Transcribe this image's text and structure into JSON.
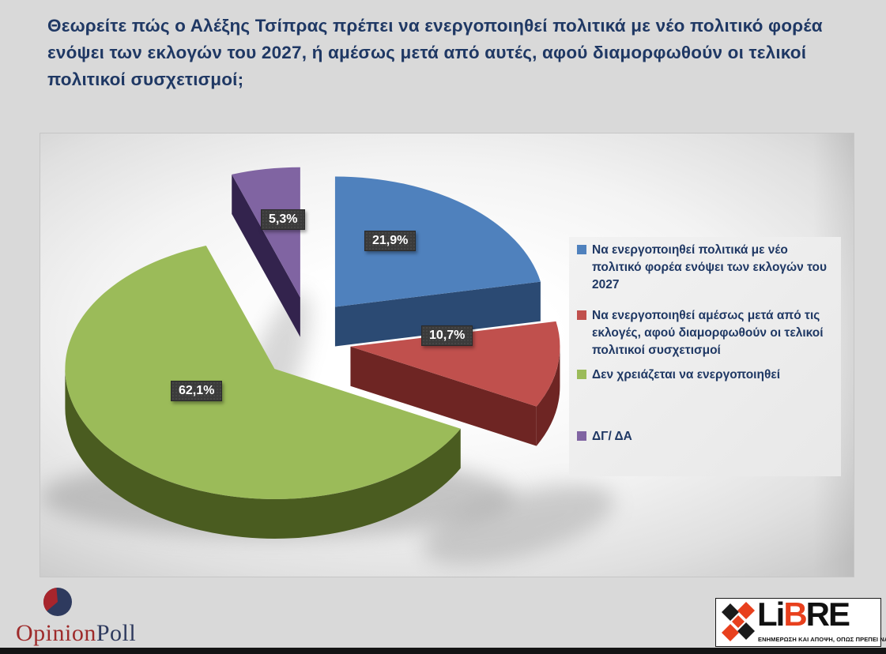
{
  "title": "Θεωρείτε πώς ο Αλέξης Τσίπρας πρέπει να ενεργοποιηθεί πολιτικά με νέο πολιτικό φορέα ενόψει των εκλογών του 2027, ή αμέσως μετά από αυτές, αφού διαμορφωθούν οι τελικοί πολιτικοί συσχετισμοί;",
  "chart_data": {
    "type": "pie",
    "style": "3d-exploded",
    "legend_position": "right",
    "value_format": "percent-comma-decimal",
    "slices": [
      {
        "label": "Να ενεργοποιηθεί πολιτικά με νέο πολιτικό φορέα ενόψει των εκλογών του 2027",
        "value": 21.9,
        "display": "21,9%",
        "color": "#4f81bd",
        "side_color": "#2b4a73"
      },
      {
        "label": "Να ενεργοποιηθεί αμέσως μετά από τις εκλογές, αφού διαμορφωθούν οι τελικοί πολιτικοί συσχετισμοί",
        "value": 10.7,
        "display": "10,7%",
        "color": "#c0504d",
        "side_color": "#6e2523"
      },
      {
        "label": "Δεν χρειάζεται να ενεργοποιηθεί",
        "value": 62.1,
        "display": "62,1%",
        "color": "#9bbb59",
        "side_color": "#4a5c20"
      },
      {
        "label": "ΔΓ/ ΔΑ",
        "value": 5.3,
        "display": "5,3%",
        "color": "#8064a2",
        "side_color": "#33234d"
      }
    ]
  },
  "footer": {
    "opinion_poll": {
      "part1": "Opinion",
      "part2": "Poll",
      "color1": "#9e2b2b",
      "color2": "#2e3a5e",
      "icon": "pie-logo-icon"
    },
    "libre": {
      "part1": "Li",
      "part2": "B",
      "part3": "RE",
      "accent_color": "#e8401d",
      "tagline": "ΕΝΗΜΕΡΩΣΗ ΚΑΙ ΑΠΟΨΗ, ΟΠΩΣ ΠΡΕΠΕΙ ΝΑ ΕΙΝΑΙ...",
      "icon": "diamonds-logo-icon"
    }
  },
  "colors": {
    "page_bg": "#d9d9d9",
    "title_text": "#1f3864",
    "legend_text": "#1f3864",
    "label_box_bg": "#3b3b3b",
    "label_box_text": "#ffffff",
    "bottom_bar": "#141414"
  }
}
